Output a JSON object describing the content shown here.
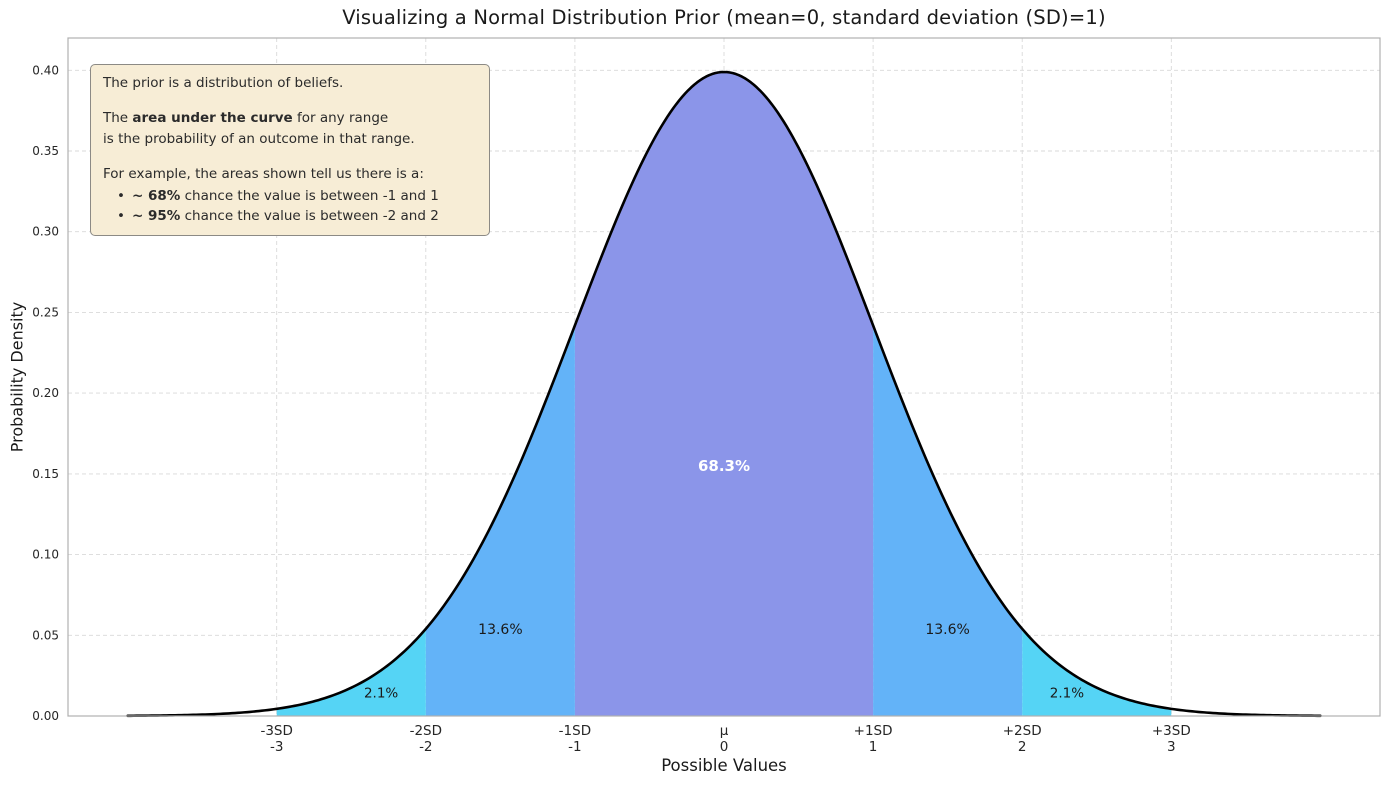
{
  "title": "Visualizing a Normal Distribution Prior (mean=0, standard deviation (SD)=1)",
  "annotation": {
    "line1": "The prior is a distribution of beliefs.",
    "line2_pre": "The ",
    "line2_bold": "area under the curve",
    "line2_post": " for any range",
    "line3": "is the probability of an outcome in that range.",
    "line4": "For example, the areas shown tell us there is a:",
    "bullet": "•",
    "bullets": [
      {
        "bold": "~ 68%",
        "text": " chance the value is between -1 and 1"
      },
      {
        "bold": "~ 95%",
        "text": " chance the value is between -2 and 2"
      }
    ],
    "bg_color": "#f7edd6",
    "border_color": "#8c8a85"
  },
  "chart_data": {
    "type": "area",
    "title": "Visualizing a Normal Distribution Prior (mean=0, standard deviation (SD)=1)",
    "xlabel": "Possible Values",
    "ylabel": "Probability Density",
    "xlim": [
      -4.4,
      4.4
    ],
    "ylim": [
      0,
      0.42
    ],
    "grid": "dashed",
    "legend": "none",
    "curve": {
      "distribution": "normal",
      "mean": 0,
      "sd": 1,
      "x_range": [
        -4,
        4
      ],
      "peak_density": 0.3989,
      "color": "#000000",
      "linewidth": 2.6
    },
    "x_ticks": [
      {
        "label_sd": "-3SD",
        "label_value": "-3",
        "x": -3
      },
      {
        "label_sd": "-2SD",
        "label_value": "-2",
        "x": -2
      },
      {
        "label_sd": "-1SD",
        "label_value": "-1",
        "x": -1
      },
      {
        "label_sd": "μ",
        "label_value": "0",
        "x": 0
      },
      {
        "label_sd": "+1SD",
        "label_value": "1",
        "x": 1
      },
      {
        "label_sd": "+2SD",
        "label_value": "2",
        "x": 2
      },
      {
        "label_sd": "+3SD",
        "label_value": "3",
        "x": 3
      }
    ],
    "y_ticks": [
      "0.00",
      "0.05",
      "0.10",
      "0.15",
      "0.20",
      "0.25",
      "0.30",
      "0.35",
      "0.40"
    ],
    "regions": [
      {
        "x0": -1,
        "x1": 1,
        "probability": "68.3%",
        "color": "#8b95e9",
        "label_x": 0,
        "label_y": 0.155,
        "label_color": "#ffffff",
        "label_bold": true,
        "label_size": 15
      },
      {
        "x0": -2,
        "x1": -1,
        "probability": "13.6%",
        "color": "#63b3f8",
        "label_x": -1.5,
        "label_y": 0.054,
        "label_color": "#1a1a1a",
        "label_bold": false,
        "label_size": 14
      },
      {
        "x0": 1,
        "x1": 2,
        "probability": "13.6%",
        "color": "#63b3f8",
        "label_x": 1.5,
        "label_y": 0.054,
        "label_color": "#1a1a1a",
        "label_bold": false,
        "label_size": 14
      },
      {
        "x0": -3,
        "x1": -2,
        "probability": "2.1%",
        "color": "#55d4f5",
        "label_x": -2.3,
        "label_y": 0.0145,
        "label_color": "#1a1a1a",
        "label_bold": false,
        "label_size": 13.5
      },
      {
        "x0": 2,
        "x1": 3,
        "probability": "2.1%",
        "color": "#55d4f5",
        "label_x": 2.3,
        "label_y": 0.0145,
        "label_color": "#1a1a1a",
        "label_bold": false,
        "label_size": 13.5
      }
    ],
    "grid_color": "#d9d9d9",
    "spine_color": "#b0b0b0"
  }
}
